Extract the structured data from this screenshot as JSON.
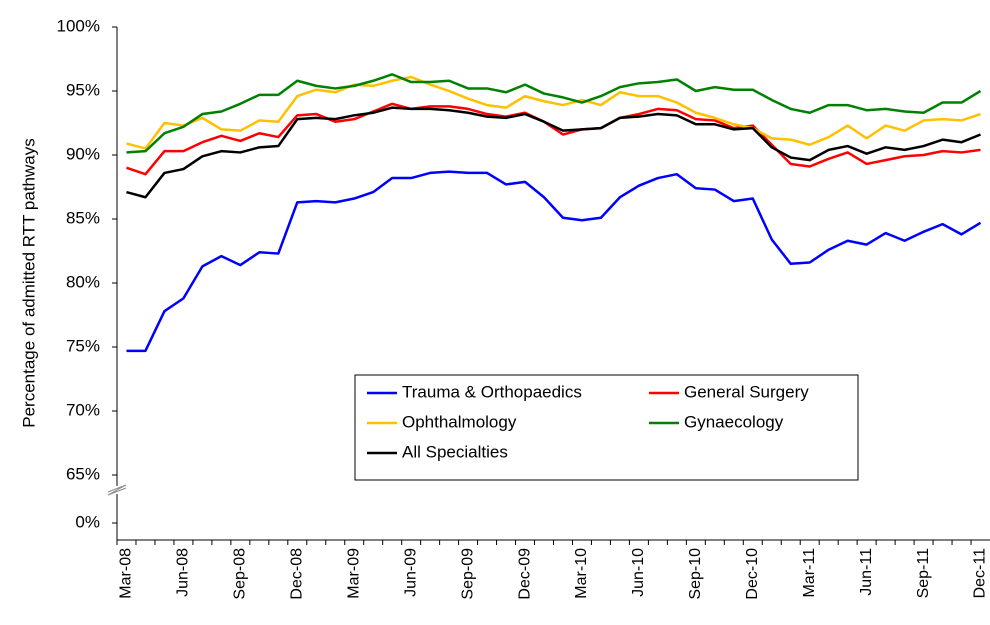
{
  "chart_data": {
    "type": "line",
    "y_label": "Percentage of admitted RTT pathways",
    "categories": [
      "Mar-08",
      null,
      null,
      "Jun-08",
      null,
      null,
      "Sep-08",
      null,
      null,
      "Dec-08",
      null,
      null,
      "Mar-09",
      null,
      null,
      "Jun-09",
      null,
      null,
      "Sep-09",
      null,
      null,
      "Dec-09",
      null,
      null,
      "Mar-10",
      null,
      null,
      "Jun-10",
      null,
      null,
      "Sep-10",
      null,
      null,
      "Dec-10",
      null,
      null,
      "Mar-11",
      null,
      null,
      "Jun-11",
      null,
      null,
      "Sep-11",
      null,
      null,
      "Dec-11"
    ],
    "series": [
      {
        "name": "Trauma & Orthopaedics",
        "color": "#0000ff",
        "values": [
          74.7,
          74.7,
          77.8,
          78.8,
          81.3,
          82.1,
          81.4,
          82.4,
          82.3,
          86.3,
          86.4,
          86.3,
          86.6,
          87.1,
          88.2,
          88.2,
          88.6,
          88.7,
          88.6,
          88.6,
          87.7,
          87.9,
          86.7,
          85.1,
          84.9,
          85.1,
          86.7,
          87.6,
          88.2,
          88.5,
          87.4,
          87.3,
          86.4,
          86.6,
          83.4,
          81.5,
          81.6,
          82.6,
          83.3,
          83.0,
          83.9,
          83.3,
          84.0,
          84.6,
          83.8,
          84.7
        ]
      },
      {
        "name": "General Surgery",
        "color": "#ff0000",
        "values": [
          89.0,
          88.5,
          90.3,
          90.3,
          91.0,
          91.5,
          91.1,
          91.7,
          91.4,
          93.1,
          93.2,
          92.6,
          92.8,
          93.4,
          94.0,
          93.6,
          93.8,
          93.8,
          93.6,
          93.2,
          93.0,
          93.3,
          92.6,
          91.6,
          92.0,
          92.1,
          92.9,
          93.2,
          93.6,
          93.5,
          92.8,
          92.7,
          92.1,
          92.3,
          90.8,
          89.3,
          89.1,
          89.7,
          90.2,
          89.3,
          89.6,
          89.9,
          90.0,
          90.3,
          90.2,
          90.4
        ]
      },
      {
        "name": "Ophthalmology",
        "color": "#ffc000",
        "values": [
          90.9,
          90.5,
          92.5,
          92.3,
          92.9,
          92.0,
          91.9,
          92.7,
          92.6,
          94.6,
          95.1,
          94.9,
          95.5,
          95.4,
          95.8,
          96.1,
          95.5,
          95.0,
          94.4,
          93.9,
          93.7,
          94.6,
          94.2,
          93.9,
          94.3,
          93.9,
          94.9,
          94.6,
          94.6,
          94.1,
          93.3,
          92.9,
          92.4,
          92.1,
          91.3,
          91.2,
          90.8,
          91.4,
          92.3,
          91.3,
          92.3,
          91.9,
          92.7,
          92.8,
          92.7,
          93.2
        ]
      },
      {
        "name": "Gynaecology",
        "color": "#008000",
        "values": [
          90.2,
          90.3,
          91.7,
          92.2,
          93.2,
          93.4,
          94.0,
          94.7,
          94.7,
          95.8,
          95.4,
          95.2,
          95.4,
          95.8,
          96.3,
          95.7,
          95.7,
          95.8,
          95.2,
          95.2,
          94.9,
          95.5,
          94.8,
          94.5,
          94.1,
          94.6,
          95.3,
          95.6,
          95.7,
          95.9,
          95.0,
          95.3,
          95.1,
          95.1,
          94.3,
          93.6,
          93.3,
          93.9,
          93.9,
          93.5,
          93.6,
          93.4,
          93.3,
          94.1,
          94.1,
          95.0
        ]
      },
      {
        "name": "All Specialties",
        "color": "#000000",
        "values": [
          87.1,
          86.7,
          88.6,
          88.9,
          89.9,
          90.3,
          90.2,
          90.6,
          90.7,
          92.8,
          92.9,
          92.8,
          93.1,
          93.3,
          93.7,
          93.6,
          93.6,
          93.5,
          93.3,
          93.0,
          92.9,
          93.2,
          92.6,
          91.9,
          92.0,
          92.1,
          92.9,
          93.0,
          93.2,
          93.1,
          92.4,
          92.4,
          92.0,
          92.1,
          90.6,
          89.8,
          89.6,
          90.4,
          90.7,
          90.1,
          90.6,
          90.4,
          90.7,
          91.2,
          91.0,
          91.6
        ]
      }
    ],
    "ylim": [
      0,
      100
    ],
    "y_break": [
      0,
      65
    ],
    "yticks": [
      {
        "value": 0,
        "label": "0%"
      },
      {
        "value": 65,
        "label": "65%"
      },
      {
        "value": 70,
        "label": "70%"
      },
      {
        "value": 75,
        "label": "75%"
      },
      {
        "value": 80,
        "label": "80%"
      },
      {
        "value": 85,
        "label": "85%"
      },
      {
        "value": 90,
        "label": "90%"
      },
      {
        "value": 95,
        "label": "95%"
      },
      {
        "value": 100,
        "label": "100%"
      }
    ],
    "grid": false,
    "legend": "lower center"
  }
}
